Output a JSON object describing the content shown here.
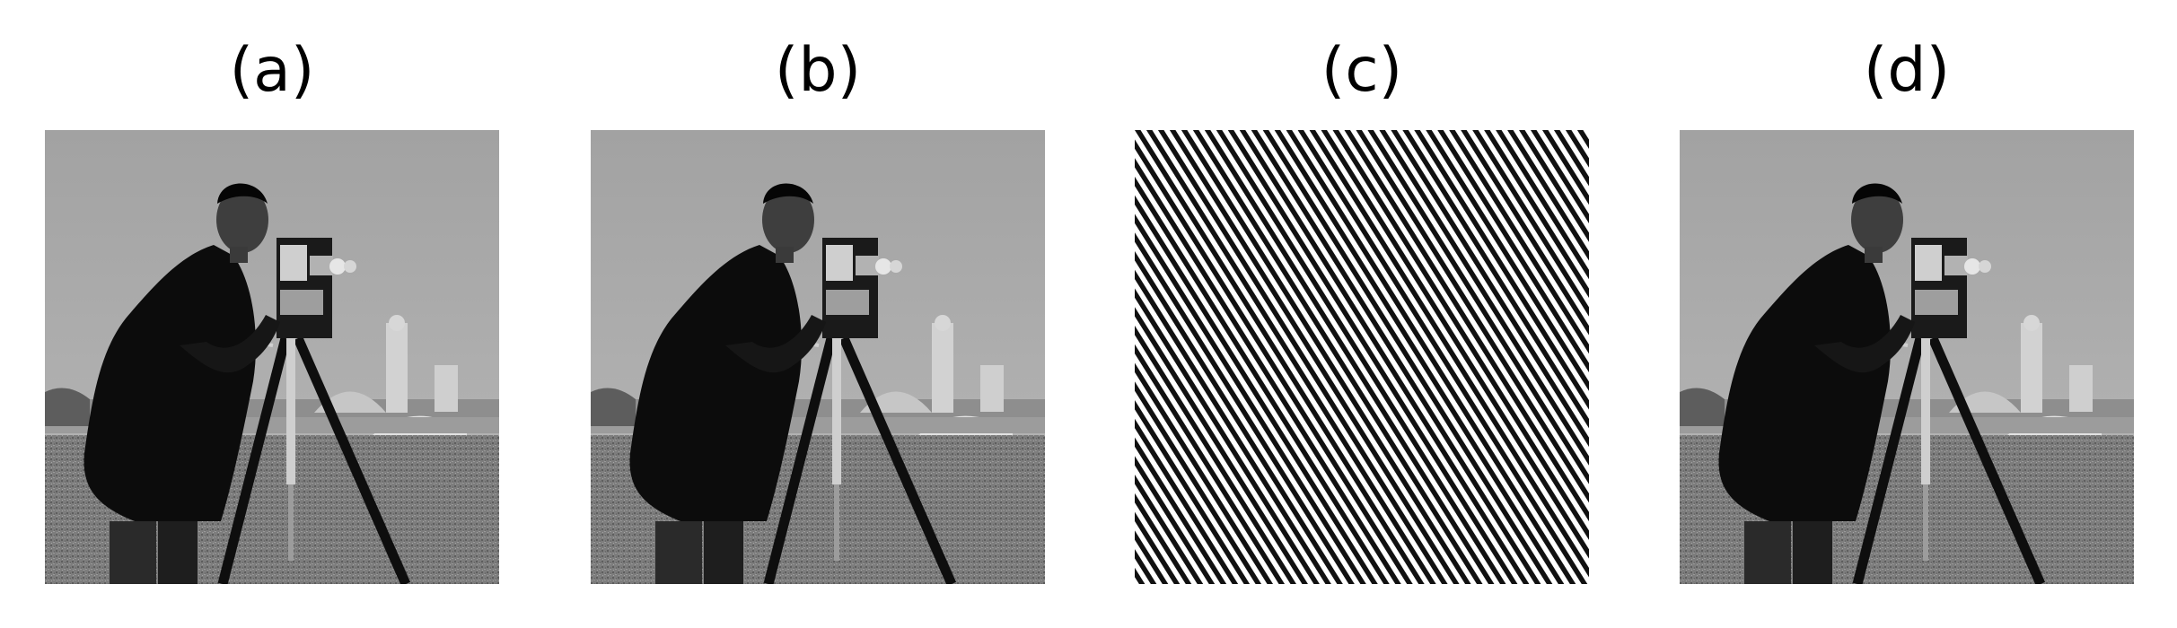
{
  "panels": [
    {
      "label": "(a)",
      "content": "cameraman"
    },
    {
      "label": "(b)",
      "content": "cameraman"
    },
    {
      "label": "(c)",
      "content": "diagonal-stripes"
    },
    {
      "label": "(d)",
      "content": "cameraman"
    }
  ],
  "colors": {
    "background": "#ffffff",
    "text": "#000000",
    "sky": "#a8a8a8",
    "grass": "#7a7a7a",
    "coat": "#0d0d0d"
  }
}
